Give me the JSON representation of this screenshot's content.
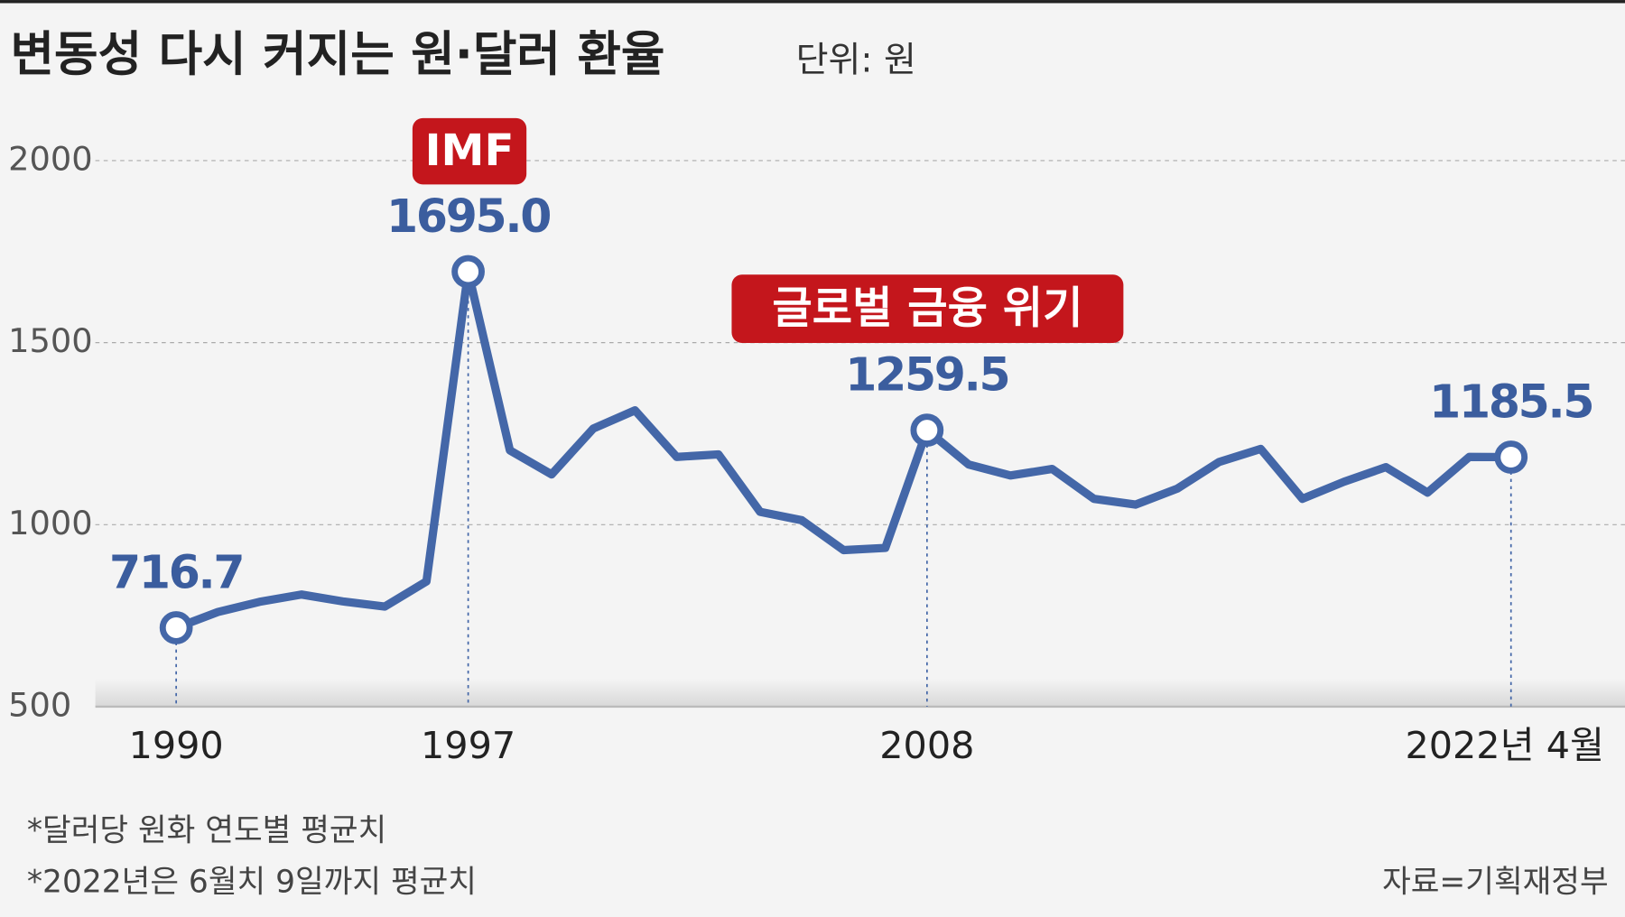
{
  "chart_data": {
    "type": "line",
    "title": "변동성 다시 커지는 원·달러 환율",
    "subtitle": "단위: 원",
    "categories": [
      "1990",
      null,
      null,
      null,
      null,
      null,
      null,
      "1997",
      null,
      null,
      null,
      null,
      null,
      null,
      null,
      null,
      null,
      null,
      "2008",
      null,
      null,
      null,
      null,
      null,
      null,
      null,
      null,
      null,
      null,
      null,
      null,
      null,
      "2022년 4월"
    ],
    "series": [
      {
        "name": "원·달러 환율",
        "color": "#4467a8",
        "values": [
          716.7,
          760,
          788,
          808,
          789,
          775,
          844,
          1695.0,
          1204,
          1138,
          1264,
          1314,
          1186,
          1193,
          1035,
          1012,
          930,
          936,
          1259.5,
          1165,
          1135,
          1153,
          1071,
          1055,
          1099,
          1172,
          1208,
          1071,
          1118,
          1158,
          1088,
          1186,
          1185.5
        ],
        "value_labels": [
          "716.7",
          null,
          null,
          null,
          null,
          null,
          null,
          "1695.0",
          null,
          null,
          null,
          null,
          null,
          null,
          null,
          null,
          null,
          null,
          "1259.5",
          null,
          null,
          null,
          null,
          null,
          null,
          null,
          null,
          null,
          null,
          null,
          null,
          null,
          "1185.5"
        ]
      }
    ],
    "annotations": [
      "IMF",
      "글로벌 금융 위기"
    ],
    "ylim": [
      500,
      2000
    ],
    "yticks": [
      500,
      1000,
      1500,
      2000
    ],
    "grid": true,
    "notes": [
      "*달러당 원화 연도별 평균치",
      "*2022년은 6월치 9일까지 평균치"
    ],
    "source": "자료=기획재정부"
  }
}
